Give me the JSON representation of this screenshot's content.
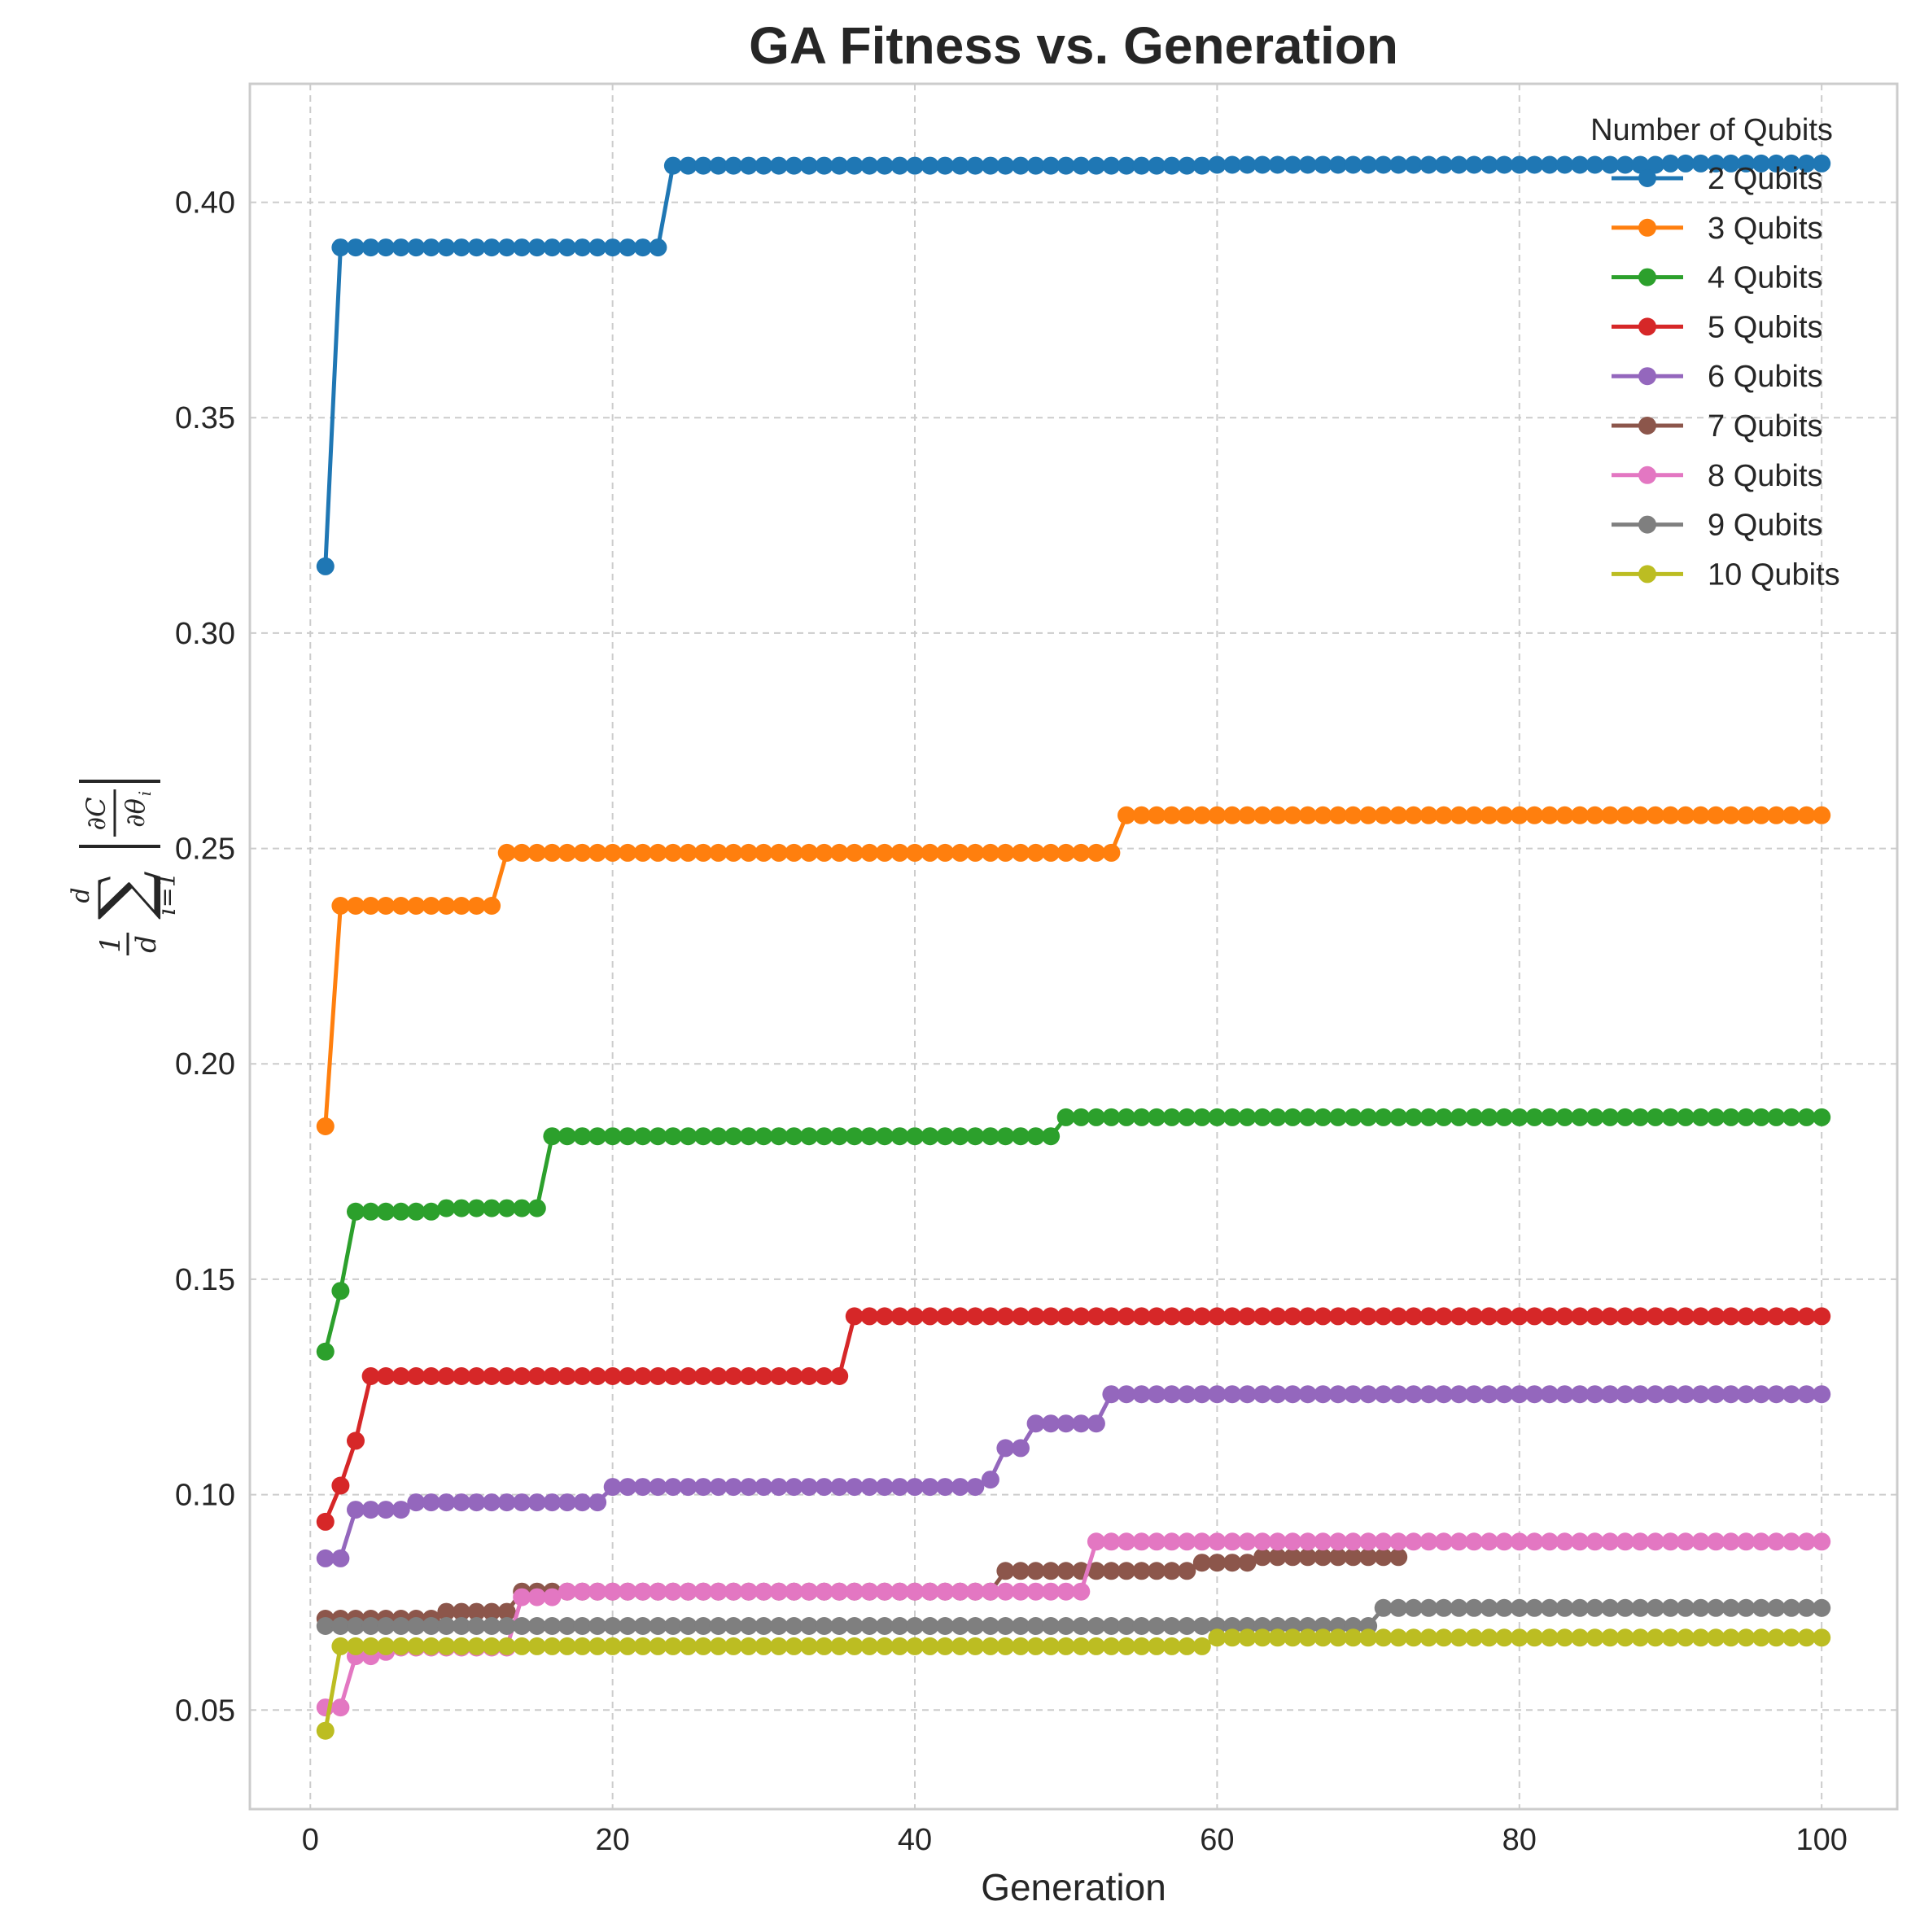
{
  "chart_data": {
    "type": "line",
    "title": "GA Fitness vs. Generation",
    "xlabel": "Generation",
    "ylabel": "1/d Σ_{i=1}^{d} |∂C/∂θ_i|",
    "xlim": [
      -4,
      105
    ],
    "ylim": [
      0.027,
      0.4275
    ],
    "xticks": [
      0,
      20,
      40,
      60,
      80,
      100
    ],
    "xtick_labels": [
      "0",
      "20",
      "40",
      "60",
      "80",
      "100"
    ],
    "yticks": [
      0.05,
      0.1,
      0.15,
      0.2,
      0.25,
      0.3,
      0.35,
      0.4
    ],
    "ytick_labels": [
      "0.05",
      "0.10",
      "0.15",
      "0.20",
      "0.25",
      "0.30",
      "0.35",
      "0.40"
    ],
    "grid": true,
    "legend": {
      "title": "Number of Qubits",
      "placement": "top-right"
    },
    "generations": [
      1,
      100
    ],
    "series": [
      {
        "name": "2 Qubits",
        "color": "#1f77b4",
        "steps": [
          [
            1,
            0.3155
          ],
          [
            2,
            0.3895
          ],
          [
            24,
            0.4085
          ],
          [
            60,
            0.4087
          ],
          [
            90,
            0.409
          ]
        ]
      },
      {
        "name": "3 Qubits",
        "color": "#ff7f0e",
        "steps": [
          [
            1,
            0.1855
          ],
          [
            2,
            0.2367
          ],
          [
            13,
            0.249
          ],
          [
            54,
            0.2577
          ]
        ]
      },
      {
        "name": "4 Qubits",
        "color": "#2ca02c",
        "steps": [
          [
            1,
            0.1332
          ],
          [
            2,
            0.1473
          ],
          [
            3,
            0.1657
          ],
          [
            9,
            0.1665
          ],
          [
            16,
            0.1832
          ],
          [
            50,
            0.1876
          ]
        ]
      },
      {
        "name": "5 Qubits",
        "color": "#d62728",
        "steps": [
          [
            1,
            0.0937
          ],
          [
            2,
            0.1021
          ],
          [
            3,
            0.1125
          ],
          [
            4,
            0.1275
          ],
          [
            36,
            0.1414
          ]
        ]
      },
      {
        "name": "6 Qubits",
        "color": "#9467bd",
        "steps": [
          [
            1,
            0.0852
          ],
          [
            3,
            0.0965
          ],
          [
            7,
            0.0982
          ],
          [
            20,
            0.1018
          ],
          [
            45,
            0.1035
          ],
          [
            46,
            0.1108
          ],
          [
            48,
            0.1165
          ],
          [
            53,
            0.1233
          ]
        ]
      },
      {
        "name": "7 Qubits",
        "color": "#8c564b",
        "steps": [
          [
            1,
            0.0712
          ],
          [
            9,
            0.0728
          ],
          [
            14,
            0.0775
          ],
          [
            17,
            0.0775
          ],
          [
            46,
            0.0823
          ],
          [
            59,
            0.0842
          ],
          [
            63,
            0.0855
          ],
          [
            72,
            0.0855
          ]
        ],
        "end": 72
      },
      {
        "name": "8 Qubits",
        "color": "#e377c2",
        "steps": [
          [
            1,
            0.0506
          ],
          [
            3,
            0.0625
          ],
          [
            5,
            0.0635
          ],
          [
            6,
            0.0645
          ],
          [
            14,
            0.0762
          ],
          [
            17,
            0.0775
          ],
          [
            52,
            0.0891
          ]
        ]
      },
      {
        "name": "9 Qubits",
        "color": "#7f7f7f",
        "steps": [
          [
            1,
            0.0695
          ],
          [
            71,
            0.0737
          ]
        ]
      },
      {
        "name": "10 Qubits",
        "color": "#bcbd22",
        "steps": [
          [
            1,
            0.0452
          ],
          [
            2,
            0.0648
          ],
          [
            60,
            0.0668
          ]
        ]
      }
    ]
  }
}
